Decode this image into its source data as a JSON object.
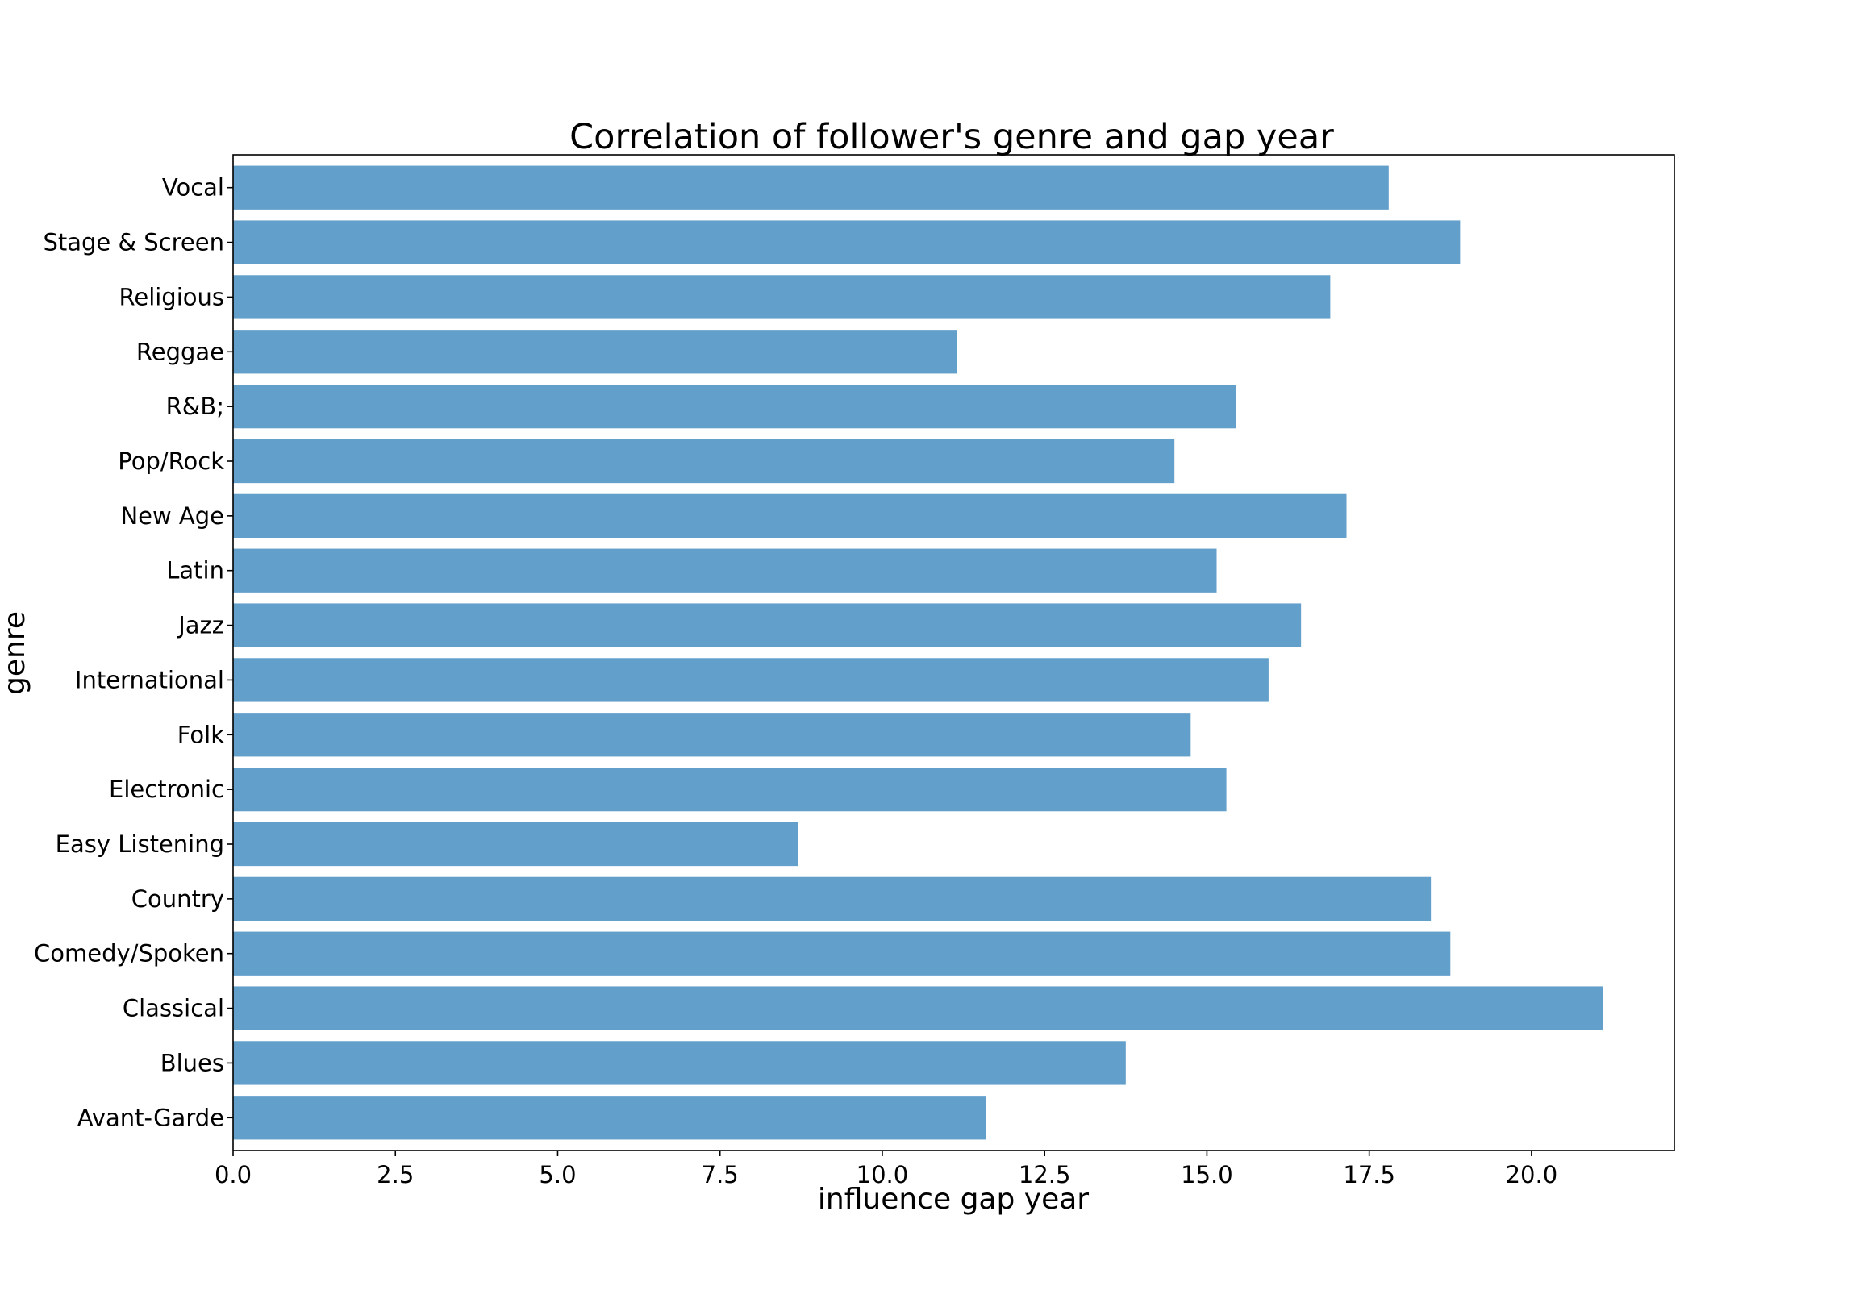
{
  "chart_data": {
    "type": "bar",
    "orientation": "horizontal",
    "title": "Correlation of follower's genre and gap year",
    "xlabel": "influence gap year",
    "ylabel": "genre",
    "categories": [
      "Avant-Garde",
      "Blues",
      "Classical",
      "Comedy/Spoken",
      "Country",
      "Easy Listening",
      "Electronic",
      "Folk",
      "International",
      "Jazz",
      "Latin",
      "New Age",
      "Pop/Rock",
      "R&B;",
      "Reggae",
      "Religious",
      "Stage & Screen",
      "Vocal"
    ],
    "values": [
      11.6,
      13.75,
      21.1,
      18.75,
      18.45,
      8.7,
      15.3,
      14.75,
      15.95,
      16.45,
      15.15,
      17.15,
      14.5,
      15.45,
      11.15,
      16.9,
      18.9,
      17.8
    ],
    "xlim": [
      0,
      22.2
    ],
    "xticks": [
      "0.0",
      "2.5",
      "5.0",
      "7.5",
      "10.0",
      "12.5",
      "15.0",
      "17.5",
      "20.0"
    ],
    "bar_color": "#629fca",
    "grid": false,
    "legend": "none"
  }
}
